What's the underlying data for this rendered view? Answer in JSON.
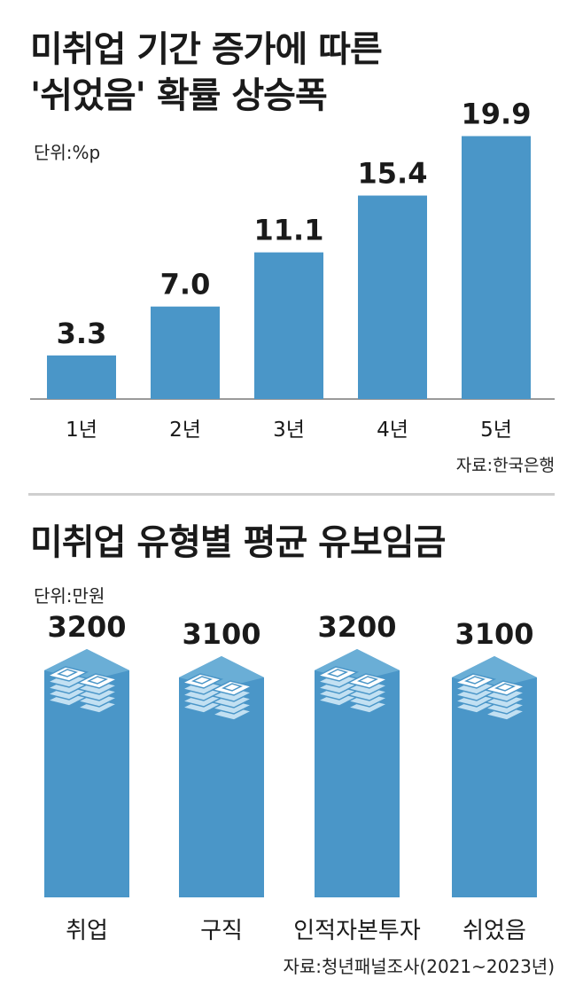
{
  "chart_data": [
    {
      "type": "bar",
      "title": "미취업 기간 증가에 따른 '쉬었음' 확률 상승폭",
      "title_lines": [
        "미취업 기간 증가에 따른",
        "'쉬었음' 확률 상승폭"
      ],
      "unit": "단위:%p",
      "source": "자료:한국은행",
      "categories": [
        "1년",
        "2년",
        "3년",
        "4년",
        "5년"
      ],
      "values": [
        3.3,
        7.0,
        11.1,
        15.4,
        19.9
      ],
      "value_labels": [
        "3.3",
        "7.0",
        "11.1",
        "15.4",
        "19.9"
      ],
      "ylim": [
        0,
        20
      ],
      "grid": false,
      "colors": {
        "bar": "#4a96c8",
        "baseline": "#9a9a9a"
      }
    },
    {
      "type": "bar",
      "title": "미취업 유형별 평균 유보임금",
      "unit": "단위:만원",
      "source": "자료:청년패널조사(2021~2023년)",
      "categories": [
        "취업",
        "구직",
        "인적자본투자",
        "쉬었음"
      ],
      "values": [
        3200,
        3100,
        3200,
        3100
      ],
      "value_labels": [
        "3200",
        "3100",
        "3200",
        "3100"
      ],
      "ylim": [
        0,
        3200
      ],
      "grid": false,
      "icon": "stacked-money-icon",
      "colors": {
        "bar": "#4a96c8",
        "bar_top": "#6aaed6",
        "icon_light": "#c2e0f2",
        "icon_white": "#ffffff"
      }
    }
  ]
}
